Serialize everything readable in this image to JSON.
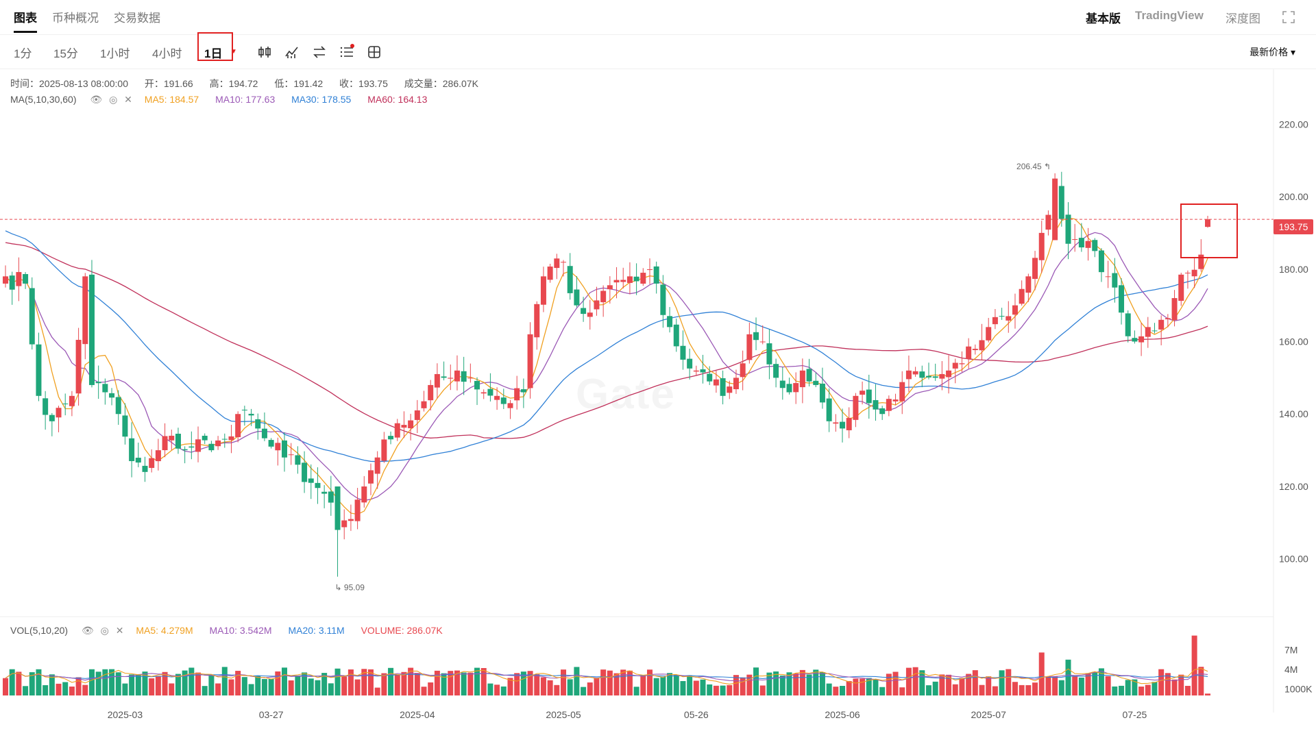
{
  "nav": {
    "tabs": [
      "图表",
      "币种概况",
      "交易数据"
    ],
    "right_links": [
      "基本版",
      "TradingView",
      "深度图"
    ]
  },
  "toolbar": {
    "timeframes": [
      "1分",
      "15分",
      "1小时",
      "4小时",
      "1日"
    ],
    "active_timeframe": "1日",
    "price_select": "最新价格 ▾"
  },
  "info": {
    "time": "时间：2025-08-13 08:00:00",
    "open": "开：191.66",
    "high": "高：194.72",
    "low": "低：191.42",
    "close": "收：193.75",
    "volume": "成交量：286.07K"
  },
  "ma_legend": {
    "label": "MA(5,10,30,60)",
    "items": [
      "MA5: 184.57",
      "MA10: 177.63",
      "MA30: 178.55",
      "MA60: 164.13"
    ]
  },
  "vol_legend": {
    "label": "VOL(5,10,20)",
    "items": [
      "MA5: 4.279M",
      "MA10: 3.542M",
      "MA20: 3.11M",
      "VOLUME: 286.07K"
    ]
  },
  "last_price": "193.75",
  "watermark": "Gate",
  "colors": {
    "up": "#e8484f",
    "down": "#1fa67a",
    "ma5": "#f0a020",
    "ma10": "#9b59b6",
    "ma30": "#2f80d6",
    "ma60": "#c0305a",
    "highlight_box": "#e02020"
  },
  "chart_data": {
    "type": "candlestick",
    "price_axis": {
      "ticks": [
        "220.00",
        "200.00",
        "180.00",
        "160.00",
        "140.00",
        "120.00",
        "100.00"
      ],
      "min": 85,
      "max": 235
    },
    "volume_axis": {
      "ticks": [
        "7M",
        "4M",
        "1000K"
      ]
    },
    "x_ticks": [
      "2025-03",
      "03-27",
      "2025-04",
      "2025-05",
      "05-26",
      "2025-06",
      "2025-07",
      "07-25"
    ],
    "high_marker": "206.45",
    "low_marker": "95.09",
    "anchors": [
      [
        0,
        178
      ],
      [
        3,
        176
      ],
      [
        5,
        145
      ],
      [
        7,
        138
      ],
      [
        10,
        145
      ],
      [
        12,
        178
      ],
      [
        13,
        148
      ],
      [
        15,
        146
      ],
      [
        17,
        140
      ],
      [
        19,
        127
      ],
      [
        21,
        124
      ],
      [
        23,
        130
      ],
      [
        25,
        134
      ],
      [
        27,
        130
      ],
      [
        29,
        133
      ],
      [
        31,
        130
      ],
      [
        33,
        133
      ],
      [
        35,
        140
      ],
      [
        36,
        141
      ],
      [
        38,
        136
      ],
      [
        40,
        131
      ],
      [
        42,
        128
      ],
      [
        44,
        126
      ],
      [
        46,
        121
      ],
      [
        48,
        118
      ],
      [
        50,
        108
      ],
      [
        52,
        111
      ],
      [
        54,
        120
      ],
      [
        56,
        128
      ],
      [
        58,
        133
      ],
      [
        60,
        137
      ],
      [
        62,
        141
      ],
      [
        64,
        148
      ],
      [
        66,
        150
      ],
      [
        68,
        152
      ],
      [
        70,
        150
      ],
      [
        72,
        146
      ],
      [
        74,
        145
      ],
      [
        76,
        143
      ],
      [
        78,
        146
      ],
      [
        79,
        162
      ],
      [
        81,
        178
      ],
      [
        84,
        182
      ],
      [
        86,
        170
      ],
      [
        88,
        168
      ],
      [
        90,
        174
      ],
      [
        92,
        177
      ],
      [
        94,
        178
      ],
      [
        96,
        179
      ],
      [
        98,
        176
      ],
      [
        100,
        164
      ],
      [
        102,
        155
      ],
      [
        104,
        152
      ],
      [
        106,
        149
      ],
      [
        108,
        145
      ],
      [
        110,
        150
      ],
      [
        112,
        162
      ],
      [
        114,
        160
      ],
      [
        116,
        150
      ],
      [
        118,
        146
      ],
      [
        120,
        152
      ],
      [
        122,
        148
      ],
      [
        124,
        138
      ],
      [
        126,
        136
      ],
      [
        128,
        145
      ],
      [
        130,
        143
      ],
      [
        132,
        140
      ],
      [
        134,
        144
      ],
      [
        136,
        152
      ],
      [
        138,
        150
      ],
      [
        140,
        150
      ],
      [
        142,
        152
      ],
      [
        144,
        154
      ],
      [
        146,
        158
      ],
      [
        148,
        164
      ],
      [
        150,
        167
      ],
      [
        152,
        170
      ],
      [
        154,
        178
      ],
      [
        156,
        190
      ],
      [
        158,
        202
      ],
      [
        160,
        187
      ],
      [
        162,
        186
      ],
      [
        164,
        185
      ],
      [
        166,
        178
      ],
      [
        168,
        168
      ],
      [
        170,
        160
      ],
      [
        172,
        164
      ],
      [
        174,
        166
      ],
      [
        176,
        172
      ],
      [
        178,
        179
      ],
      [
        180,
        184
      ],
      [
        181,
        193
      ]
    ],
    "total_candles": 182,
    "last_candle": {
      "time": "2025-08-13 08:00:00",
      "open": 191.66,
      "high": 194.72,
      "low": 191.42,
      "close": 193.75,
      "volume": "286.07K"
    },
    "ma_last": {
      "MA5": 184.57,
      "MA10": 177.63,
      "MA30": 178.55,
      "MA60": 164.13
    },
    "volume_ma_last": {
      "MA5": "4.279M",
      "MA10": "3.542M",
      "MA20": "3.11M"
    },
    "grid": false,
    "legend": "top-left"
  }
}
